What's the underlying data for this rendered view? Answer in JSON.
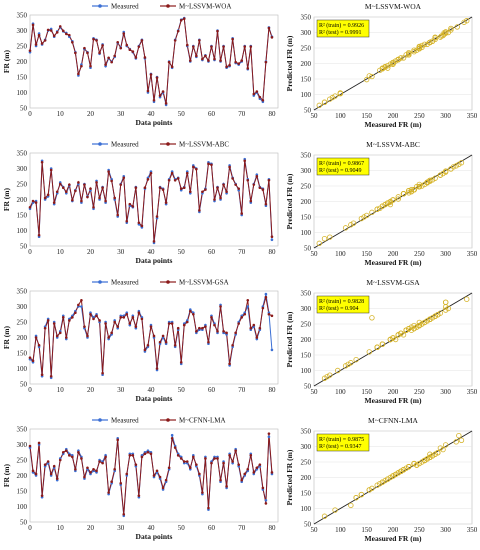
{
  "chart_data": [
    {
      "type": "line",
      "panel": "LSSVM-WOA time series",
      "xlabel": "Data points",
      "ylabel": "FR (m)",
      "xlim": [
        0,
        82
      ],
      "ylim": [
        50,
        350
      ],
      "xticks": [
        0,
        10,
        20,
        30,
        40,
        50,
        60,
        70,
        80
      ],
      "yticks": [
        50,
        100,
        150,
        200,
        250,
        300,
        350
      ],
      "legend_position": "top",
      "series": [
        {
          "name": "Measured",
          "color": "#3b6fd4"
        },
        {
          "name": "M~LSSVM-WOA",
          "color": "#8b1a1a"
        }
      ],
      "measured": [
        230,
        322,
        250,
        290,
        255,
        270,
        300,
        305,
        280,
        297,
        310,
        297,
        292,
        280,
        265,
        230,
        155,
        190,
        240,
        230,
        180,
        275,
        270,
        225,
        255,
        185,
        210,
        200,
        215,
        260,
        245,
        295,
        250,
        240,
        230,
        210,
        250,
        270,
        210,
        100,
        160,
        70,
        150,
        85,
        100,
        60,
        200,
        180,
        270,
        300,
        335,
        340,
        250,
        200,
        250,
        215,
        270,
        205,
        220,
        200,
        250,
        205,
        300,
        200,
        250,
        180,
        185,
        275,
        195,
        190,
        200,
        250,
        175,
        250,
        90,
        100,
        80,
        70,
        200,
        310,
        280
      ],
      "predicted": [
        235,
        318,
        255,
        285,
        258,
        268,
        302,
        300,
        283,
        294,
        313,
        299,
        289,
        285,
        262,
        228,
        160,
        185,
        243,
        228,
        185,
        272,
        268,
        228,
        252,
        190,
        212,
        198,
        218,
        262,
        243,
        290,
        253,
        238,
        232,
        213,
        248,
        268,
        213,
        105,
        158,
        75,
        148,
        90,
        103,
        65,
        198,
        183,
        268,
        298,
        333,
        338,
        253,
        203,
        248,
        218,
        268,
        208,
        218,
        203,
        248,
        208,
        298,
        203,
        248,
        183,
        188,
        272,
        198,
        193,
        203,
        248,
        178,
        248,
        95,
        103,
        85,
        75,
        198,
        308,
        278
      ]
    },
    {
      "type": "scatter",
      "panel": "LSSVM-WOA",
      "title": "M~LSSVM-WOA",
      "xlabel": "Measured FR (m)",
      "ylabel": "Predicted FR (m)",
      "xlim": [
        50,
        350
      ],
      "ylim": [
        50,
        350
      ],
      "ticks": [
        50,
        100,
        150,
        200,
        250,
        300,
        350
      ],
      "r2_train": "R² (train) = 0.9926",
      "r2_test": "R² (test) = 0.9991"
    },
    {
      "type": "line",
      "panel": "LSSVM-ABC time series",
      "xlabel": "Data points",
      "ylabel": "FR (m)",
      "xlim": [
        0,
        82
      ],
      "ylim": [
        50,
        350
      ],
      "xticks": [
        0,
        10,
        20,
        30,
        40,
        50,
        60,
        70,
        80
      ],
      "yticks": [
        50,
        100,
        150,
        200,
        250,
        300,
        350
      ],
      "legend_position": "top",
      "series": [
        {
          "name": "Measured",
          "color": "#3b6fd4"
        },
        {
          "name": "M~LSSVM-ABC",
          "color": "#8b1a1a"
        }
      ],
      "measured": [
        170,
        190,
        195,
        80,
        325,
        200,
        210,
        300,
        185,
        220,
        255,
        240,
        220,
        245,
        195,
        230,
        250,
        190,
        250,
        210,
        230,
        170,
        260,
        200,
        240,
        190,
        295,
        265,
        200,
        145,
        250,
        275,
        125,
        180,
        175,
        240,
        120,
        110,
        235,
        270,
        290,
        60,
        140,
        240,
        235,
        185,
        265,
        290,
        265,
        270,
        230,
        240,
        290,
        220,
        310,
        300,
        160,
        220,
        235,
        320,
        315,
        195,
        240,
        200,
        250,
        220,
        310,
        270,
        250,
        230,
        150,
        330,
        265,
        190,
        250,
        280,
        240,
        235,
        180,
        265,
        70
      ],
      "predicted": [
        175,
        195,
        190,
        85,
        320,
        205,
        215,
        295,
        190,
        225,
        250,
        238,
        225,
        248,
        198,
        228,
        255,
        195,
        248,
        208,
        235,
        175,
        255,
        205,
        238,
        195,
        290,
        260,
        205,
        150,
        248,
        270,
        130,
        185,
        178,
        238,
        125,
        115,
        238,
        265,
        285,
        65,
        145,
        238,
        232,
        190,
        262,
        285,
        262,
        268,
        235,
        238,
        285,
        225,
        305,
        298,
        165,
        225,
        232,
        315,
        312,
        200,
        238,
        205,
        248,
        225,
        305,
        268,
        248,
        235,
        155,
        325,
        262,
        195,
        248,
        275,
        238,
        232,
        185,
        262,
        80
      ]
    },
    {
      "type": "scatter",
      "panel": "LSSVM-ABC",
      "title": "M~LSSVM-ABC",
      "xlabel": "Measured FR (m)",
      "ylabel": "Predicted FR (m)",
      "xlim": [
        50,
        350
      ],
      "ylim": [
        50,
        350
      ],
      "ticks": [
        50,
        100,
        150,
        200,
        250,
        300,
        350
      ],
      "r2_train": "R² (train) = 0.9867",
      "r2_test": "R² (test) = 0.9049"
    },
    {
      "type": "line",
      "panel": "LSSVM-GSA time series",
      "xlabel": "Data points",
      "ylabel": "FR (m)",
      "xlim": [
        0,
        82
      ],
      "ylim": [
        50,
        350
      ],
      "xticks": [
        0,
        10,
        20,
        30,
        40,
        50,
        60,
        70,
        80
      ],
      "yticks": [
        50,
        100,
        150,
        200,
        250,
        300,
        350
      ],
      "legend_position": "top",
      "series": [
        {
          "name": "Measured",
          "color": "#3b6fd4"
        },
        {
          "name": "M~LSSVM-GSA",
          "color": "#8b1a1a"
        }
      ],
      "measured": [
        130,
        120,
        205,
        170,
        75,
        235,
        260,
        70,
        250,
        200,
        220,
        270,
        195,
        260,
        270,
        285,
        300,
        300,
        230,
        200,
        280,
        265,
        275,
        250,
        80,
        250,
        195,
        210,
        255,
        230,
        270,
        270,
        280,
        240,
        270,
        230,
        285,
        265,
        155,
        170,
        240,
        200,
        95,
        180,
        200,
        180,
        250,
        250,
        170,
        225,
        115,
        245,
        255,
        290,
        280,
        215,
        225,
        225,
        240,
        180,
        270,
        245,
        215,
        305,
        215,
        210,
        110,
        170,
        210,
        250,
        270,
        280,
        300,
        225,
        235,
        195,
        225,
        300,
        340,
        280,
        160
      ],
      "predicted": [
        135,
        125,
        200,
        175,
        80,
        230,
        255,
        75,
        245,
        205,
        215,
        265,
        200,
        255,
        265,
        280,
        305,
        320,
        235,
        205,
        275,
        260,
        270,
        255,
        85,
        245,
        200,
        215,
        250,
        235,
        265,
        265,
        275,
        245,
        265,
        235,
        280,
        260,
        160,
        175,
        235,
        205,
        100,
        185,
        205,
        185,
        245,
        245,
        175,
        230,
        120,
        240,
        250,
        285,
        275,
        220,
        230,
        230,
        235,
        185,
        265,
        240,
        220,
        300,
        220,
        215,
        115,
        175,
        215,
        245,
        265,
        275,
        320,
        230,
        240,
        200,
        230,
        295,
        330,
        275,
        270
      ]
    },
    {
      "type": "scatter",
      "panel": "LSSVM-GSA",
      "title": "M~LSSVM-GSA",
      "xlabel": "Measured FR (m)",
      "ylabel": "Predicted FR (m)",
      "xlim": [
        50,
        350
      ],
      "ylim": [
        50,
        350
      ],
      "ticks": [
        50,
        100,
        150,
        200,
        250,
        300,
        350
      ],
      "r2_train": "R² (train) = 0.9828",
      "r2_test": "R² (test) = 0.904"
    },
    {
      "type": "line",
      "panel": "CFNN-LMA time series",
      "xlabel": "Data points",
      "ylabel": "FR (m)",
      "xlim": [
        0,
        82
      ],
      "ylim": [
        50,
        350
      ],
      "xticks": [
        0,
        10,
        20,
        30,
        40,
        50,
        60,
        70,
        80
      ],
      "yticks": [
        50,
        100,
        150,
        200,
        250,
        300,
        350
      ],
      "legend_position": "top",
      "series": [
        {
          "name": "Measured",
          "color": "#3b6fd4"
        },
        {
          "name": "M~CFNN-LMA",
          "color": "#8b1a1a"
        }
      ],
      "measured": [
        290,
        210,
        200,
        300,
        130,
        230,
        240,
        200,
        225,
        185,
        255,
        270,
        285,
        270,
        265,
        215,
        280,
        260,
        190,
        220,
        205,
        215,
        210,
        250,
        245,
        265,
        140,
        175,
        215,
        320,
        170,
        70,
        200,
        270,
        270,
        230,
        130,
        265,
        275,
        280,
        275,
        195,
        210,
        190,
        155,
        180,
        220,
        330,
        295,
        270,
        260,
        240,
        240,
        220,
        265,
        230,
        200,
        140,
        260,
        90,
        245,
        260,
        260,
        180,
        245,
        160,
        270,
        240,
        285,
        230,
        180,
        200,
        215,
        270,
        205,
        220,
        230,
        155,
        120,
        325,
        205
      ],
      "predicted": [
        295,
        215,
        205,
        305,
        135,
        235,
        245,
        205,
        230,
        190,
        250,
        275,
        280,
        265,
        260,
        220,
        275,
        255,
        195,
        225,
        210,
        220,
        215,
        245,
        240,
        260,
        145,
        180,
        220,
        315,
        175,
        75,
        205,
        265,
        265,
        235,
        135,
        260,
        270,
        275,
        270,
        200,
        215,
        195,
        160,
        185,
        225,
        320,
        290,
        265,
        255,
        245,
        245,
        225,
        260,
        235,
        205,
        145,
        255,
        95,
        240,
        255,
        255,
        185,
        240,
        165,
        265,
        245,
        280,
        235,
        185,
        205,
        220,
        265,
        210,
        225,
        235,
        160,
        110,
        335,
        210
      ]
    },
    {
      "type": "scatter",
      "panel": "CFNN-LMA",
      "title": "M~CFNN-LMA",
      "xlabel": "Measured FR (m)",
      "ylabel": "Predicted FR (m)",
      "xlim": [
        50,
        350
      ],
      "ylim": [
        50,
        350
      ],
      "ticks": [
        50,
        100,
        150,
        200,
        250,
        300,
        350
      ],
      "r2_train": "R² (train) = 0.9875",
      "r2_test": "R² (test) = 0.9347"
    }
  ]
}
